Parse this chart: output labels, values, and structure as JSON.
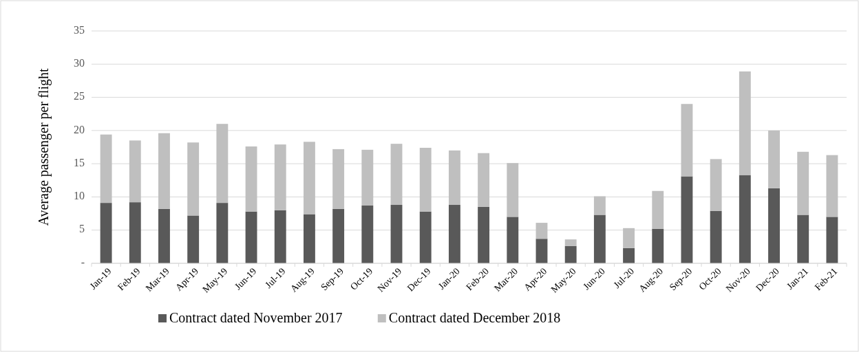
{
  "chart_data": {
    "type": "bar",
    "stacked": true,
    "ylabel": "Average passenger per flight",
    "categories": [
      "Jan-19",
      "Feb-19",
      "Mar-19",
      "Apr-19",
      "May-19",
      "Jun-19",
      "Jul-19",
      "Aug-19",
      "Sep-19",
      "Oct-19",
      "Nov-19",
      "Dec-19",
      "Jan-20",
      "Feb-20",
      "Mar-20",
      "Apr-20",
      "May-20",
      "Jun-20",
      "Jul-20",
      "Aug-20",
      "Sep-20",
      "Oct-20",
      "Nov-20",
      "Dec-20",
      "Jan-21",
      "Feb-21"
    ],
    "series": [
      {
        "name": "Contract dated November 2017",
        "color": "#595959",
        "values": [
          9.1,
          9.2,
          8.2,
          7.2,
          9.1,
          7.8,
          8.0,
          7.4,
          8.2,
          8.7,
          8.8,
          7.8,
          8.8,
          8.5,
          7.0,
          3.7,
          2.6,
          7.3,
          2.3,
          5.2,
          13.1,
          7.9,
          13.3,
          11.3,
          7.3,
          7.0
        ]
      },
      {
        "name": "Contract dated December 2018",
        "color": "#bfbfbf",
        "values": [
          10.3,
          9.3,
          11.4,
          11.0,
          11.9,
          9.8,
          9.9,
          10.9,
          9.0,
          8.4,
          9.2,
          9.6,
          8.2,
          8.1,
          8.1,
          2.4,
          1.0,
          2.8,
          3.0,
          5.7,
          10.9,
          7.8,
          15.6,
          8.7,
          9.5,
          9.3
        ]
      }
    ],
    "ylim": [
      0,
      35
    ],
    "yticks": [
      {
        "value": 0,
        "label": "-"
      },
      5,
      10,
      15,
      20,
      25,
      30,
      35
    ],
    "grid": "y",
    "legend": "bottom"
  }
}
